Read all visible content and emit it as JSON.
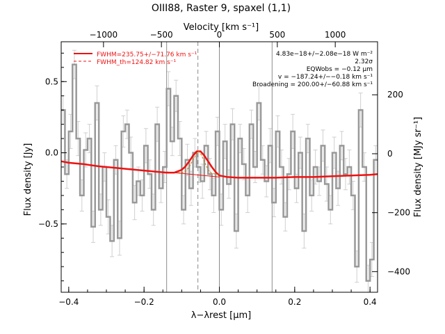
{
  "chart_data": {
    "type": "line",
    "title": "OIII88, Raster 9, spaxel (1,1)",
    "xlabel": "λ−λrest [µm]",
    "ylabel": "Flux density [Jy]",
    "y2label": "Flux density [MJy sr⁻¹]",
    "x2label": "Velocity [km s⁻¹]",
    "xlim": [
      -0.42,
      0.42
    ],
    "ylim": [
      -0.98,
      0.78
    ],
    "y2lim": [
      -470,
      380
    ],
    "x2lim": [
      -1365,
      1365
    ],
    "xticks": [
      -0.4,
      -0.2,
      0.0,
      0.2,
      0.4
    ],
    "xtick_labels": [
      "−0.4",
      "−0.2",
      "0.0",
      "0.2",
      "0.4"
    ],
    "yticks": [
      0.5,
      0.0,
      -0.5
    ],
    "ytick_labels": [
      "0.5",
      "0.0",
      "−0.5"
    ],
    "y2ticks": [
      200,
      0,
      -200,
      -400
    ],
    "y2tick_labels": [
      "200",
      "0",
      "−200",
      "−400"
    ],
    "x2ticks": [
      -1000,
      -500,
      0,
      500,
      1000
    ],
    "x2tick_labels": [
      "−1000",
      "−500",
      "0",
      "500",
      "1000"
    ],
    "vlines": [
      -0.14,
      0.0,
      0.14
    ],
    "dashed_vline": -0.057,
    "legend": {
      "placement": "top-left",
      "entries": [
        {
          "label": "FWHM=235.75+/−71.76 km s⁻¹",
          "color": "#ee1111",
          "style": "solid"
        },
        {
          "label": "FWHM_th=124.82 km s⁻¹",
          "color": "#ee1111",
          "style": "dashed"
        }
      ]
    },
    "annotations": [
      "4.83e−18+/−2.08e−18 W m⁻²",
      "2.32σ",
      "EQWobs = −0.12 µm",
      "v = −187.24+/−−0.18 km s⁻¹",
      "Broadening = 200.00+/−60.88 km s⁻¹"
    ],
    "series": [
      {
        "style": "step",
        "color": "#999999",
        "x": [
          -0.415,
          -0.405,
          -0.395,
          -0.385,
          -0.375,
          -0.365,
          -0.355,
          -0.345,
          -0.335,
          -0.325,
          -0.315,
          -0.305,
          -0.295,
          -0.285,
          -0.275,
          -0.265,
          -0.255,
          -0.245,
          -0.235,
          -0.225,
          -0.215,
          -0.205,
          -0.195,
          -0.185,
          -0.175,
          -0.165,
          -0.155,
          -0.145,
          -0.135,
          -0.125,
          -0.115,
          -0.105,
          -0.095,
          -0.085,
          -0.075,
          -0.065,
          -0.055,
          -0.045,
          -0.035,
          -0.025,
          -0.015,
          -0.005,
          0.005,
          0.015,
          0.025,
          0.035,
          0.045,
          0.055,
          0.065,
          0.075,
          0.085,
          0.095,
          0.105,
          0.115,
          0.125,
          0.135,
          0.145,
          0.155,
          0.165,
          0.175,
          0.185,
          0.195,
          0.205,
          0.215,
          0.225,
          0.235,
          0.245,
          0.255,
          0.265,
          0.275,
          0.285,
          0.295,
          0.305,
          0.315,
          0.325,
          0.335,
          0.345,
          0.355,
          0.365,
          0.375,
          0.385,
          0.395,
          0.405,
          0.415
        ],
        "values": [
          0.3,
          -0.15,
          0.15,
          0.62,
          0.1,
          -0.3,
          0.02,
          0.1,
          -0.52,
          0.35,
          -0.4,
          -0.1,
          -0.45,
          -0.62,
          -0.05,
          -0.6,
          0.15,
          0.2,
          0.0,
          -0.35,
          -0.2,
          -0.3,
          0.05,
          -0.15,
          -0.4,
          0.2,
          -0.25,
          -0.1,
          0.45,
          0.08,
          0.4,
          0.1,
          -0.4,
          -0.05,
          -0.25,
          0.0,
          -0.1,
          -0.2,
          0.05,
          -0.15,
          -0.3,
          0.15,
          -0.4,
          0.08,
          -0.22,
          0.2,
          -0.55,
          0.1,
          -0.08,
          -0.3,
          0.2,
          -0.1,
          0.35,
          -0.05,
          -0.2,
          0.05,
          -0.35,
          0.15,
          -0.1,
          -0.45,
          -0.15,
          0.15,
          -0.25,
          0.0,
          -0.55,
          0.1,
          -0.3,
          -0.1,
          -0.2,
          0.05,
          -0.22,
          -0.4,
          0.0,
          -0.25,
          0.05,
          -0.15,
          -0.1,
          -0.3,
          -0.8,
          0.3,
          -0.1,
          -0.9,
          -0.75,
          -0.05
        ],
        "errors": [
          0.1,
          0.1,
          0.12,
          0.1,
          0.12,
          0.11,
          0.12,
          0.1,
          0.11,
          0.12,
          0.11,
          0.1,
          0.12,
          0.11,
          0.1,
          0.12,
          0.11,
          0.1,
          0.11,
          0.12,
          0.1,
          0.11,
          0.12,
          0.1,
          0.11,
          0.12,
          0.1,
          0.11,
          0.12,
          0.1,
          0.11,
          0.12,
          0.1,
          0.11,
          0.12,
          0.1,
          0.11,
          0.12,
          0.1,
          0.11,
          0.12,
          0.1,
          0.11,
          0.12,
          0.1,
          0.11,
          0.12,
          0.1,
          0.11,
          0.12,
          0.1,
          0.11,
          0.12,
          0.1,
          0.11,
          0.12,
          0.1,
          0.11,
          0.12,
          0.1,
          0.11,
          0.12,
          0.1,
          0.11,
          0.12,
          0.1,
          0.11,
          0.12,
          0.1,
          0.11,
          0.12,
          0.1,
          0.11,
          0.12,
          0.1,
          0.11,
          0.12,
          0.1,
          0.11,
          0.12,
          0.1,
          0.11,
          0.12,
          0.1
        ]
      },
      {
        "name": "FWHM=235.75+/−71.76 km s⁻¹",
        "style": "solid",
        "color": "#ee1111",
        "x": [
          -0.42,
          -0.4,
          -0.36,
          -0.32,
          -0.28,
          -0.24,
          -0.2,
          -0.16,
          -0.14,
          -0.12,
          -0.1,
          -0.09,
          -0.08,
          -0.07,
          -0.06,
          -0.05,
          -0.04,
          -0.03,
          -0.02,
          -0.01,
          0.0,
          0.02,
          0.05,
          0.1,
          0.15,
          0.2,
          0.25,
          0.3,
          0.35,
          0.4,
          0.42
        ],
        "values": [
          -0.06,
          -0.07,
          -0.08,
          -0.095,
          -0.105,
          -0.115,
          -0.125,
          -0.135,
          -0.14,
          -0.14,
          -0.12,
          -0.095,
          -0.06,
          -0.02,
          0.01,
          0.01,
          -0.02,
          -0.06,
          -0.1,
          -0.135,
          -0.16,
          -0.17,
          -0.175,
          -0.175,
          -0.175,
          -0.17,
          -0.17,
          -0.165,
          -0.16,
          -0.155,
          -0.15
        ]
      },
      {
        "name": "baseline",
        "style": "solid-thin",
        "color": "#ee1111",
        "x": [
          -0.14,
          0.0
        ],
        "values": [
          -0.135,
          -0.17
        ]
      },
      {
        "name": "FWHM_th=124.82 km s⁻¹",
        "style": "dashed",
        "color": "#cc7700",
        "x": [
          -0.11,
          -0.1,
          -0.09,
          -0.08,
          -0.07,
          -0.06,
          -0.055,
          -0.05,
          -0.04,
          -0.03,
          -0.02,
          -0.01,
          0.0
        ],
        "values": [
          -0.14,
          -0.14,
          -0.13,
          -0.1,
          -0.05,
          -0.005,
          0.01,
          -0.005,
          -0.06,
          -0.12,
          -0.145,
          -0.15,
          -0.155
        ]
      }
    ]
  }
}
